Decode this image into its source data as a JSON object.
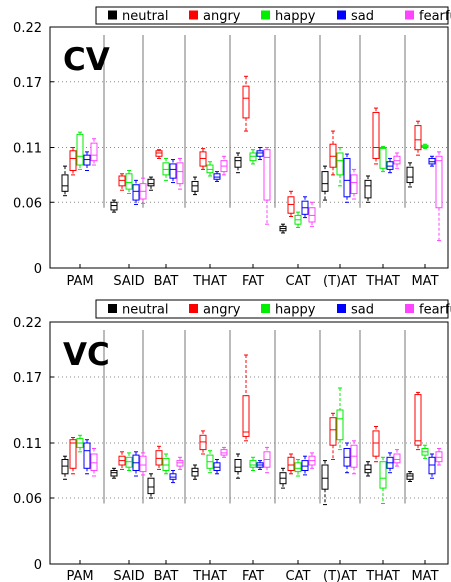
{
  "legend": [
    {
      "label": "neutral",
      "color": "#000000"
    },
    {
      "label": "angry",
      "color": "#ff0000"
    },
    {
      "label": "happy",
      "color": "#00ee00"
    },
    {
      "label": "sad",
      "color": "#0000ff"
    },
    {
      "label": "fearful",
      "color": "#ff44ff"
    }
  ],
  "chart_data": [
    {
      "type": "box",
      "title": "CV",
      "ylim": [
        0,
        0.22
      ],
      "yticks": [
        "0",
        "0.06",
        "0.11",
        "0.17",
        "0.22"
      ],
      "ytick_values": [
        0,
        0.06,
        0.11,
        0.17,
        0.22
      ],
      "categories": [
        "PAM",
        "SAID",
        "BAT",
        "THAT",
        "FAT",
        "CAT",
        "(T)AT",
        "THAT",
        "MAT"
      ],
      "grid": true,
      "legend_position": "top",
      "series": [
        {
          "name": "neutral",
          "boxes": [
            {
              "q1": 0.07,
              "q3": 0.085,
              "med": 0.075,
              "lo": 0.066,
              "hi": 0.093
            },
            {
              "q1": 0.053,
              "q3": 0.06,
              "med": 0.057,
              "lo": 0.051,
              "hi": 0.062
            },
            {
              "q1": 0.075,
              "q3": 0.081,
              "med": 0.077,
              "lo": 0.071,
              "hi": 0.083
            },
            {
              "q1": 0.07,
              "q3": 0.079,
              "med": 0.075,
              "lo": 0.067,
              "hi": 0.083
            },
            {
              "q1": 0.092,
              "q3": 0.101,
              "med": 0.098,
              "lo": 0.087,
              "hi": 0.105
            },
            {
              "q1": 0.034,
              "q3": 0.038,
              "med": 0.036,
              "lo": 0.032,
              "hi": 0.04
            },
            {
              "q1": 0.07,
              "q3": 0.088,
              "med": 0.077,
              "lo": 0.062,
              "hi": 0.093
            },
            {
              "q1": 0.064,
              "q3": 0.08,
              "med": 0.075,
              "lo": 0.06,
              "hi": 0.084
            },
            {
              "q1": 0.078,
              "q3": 0.092,
              "med": 0.083,
              "lo": 0.074,
              "hi": 0.096
            }
          ]
        },
        {
          "name": "angry",
          "boxes": [
            {
              "q1": 0.089,
              "q3": 0.107,
              "med": 0.1,
              "lo": 0.085,
              "hi": 0.11
            },
            {
              "q1": 0.075,
              "q3": 0.084,
              "med": 0.08,
              "lo": 0.071,
              "hi": 0.086
            },
            {
              "q1": 0.102,
              "q3": 0.107,
              "med": 0.105,
              "lo": 0.1,
              "hi": 0.108
            },
            {
              "q1": 0.093,
              "q3": 0.106,
              "med": 0.1,
              "lo": 0.09,
              "hi": 0.109
            },
            {
              "q1": 0.137,
              "q3": 0.166,
              "med": 0.155,
              "lo": 0.125,
              "hi": 0.175
            },
            {
              "q1": 0.05,
              "q3": 0.065,
              "med": 0.058,
              "lo": 0.047,
              "hi": 0.07
            },
            {
              "q1": 0.092,
              "q3": 0.113,
              "med": 0.102,
              "lo": 0.085,
              "hi": 0.125
            },
            {
              "q1": 0.1,
              "q3": 0.142,
              "med": 0.11,
              "lo": 0.095,
              "hi": 0.146
            },
            {
              "q1": 0.108,
              "q3": 0.13,
              "med": 0.117,
              "lo": 0.103,
              "hi": 0.134
            }
          ]
        },
        {
          "name": "happy",
          "boxes": [
            {
              "q1": 0.094,
              "q3": 0.122,
              "med": 0.102,
              "lo": 0.09,
              "hi": 0.124
            },
            {
              "q1": 0.072,
              "q3": 0.086,
              "med": 0.078,
              "lo": 0.068,
              "hi": 0.089
            },
            {
              "q1": 0.085,
              "q3": 0.096,
              "med": 0.09,
              "lo": 0.08,
              "hi": 0.1
            },
            {
              "q1": 0.087,
              "q3": 0.094,
              "med": 0.09,
              "lo": 0.084,
              "hi": 0.097
            },
            {
              "q1": 0.098,
              "q3": 0.105,
              "med": 0.102,
              "lo": 0.095,
              "hi": 0.108
            },
            {
              "q1": 0.04,
              "q3": 0.048,
              "med": 0.044,
              "lo": 0.037,
              "hi": 0.051
            },
            {
              "q1": 0.085,
              "q3": 0.105,
              "med": 0.098,
              "lo": 0.075,
              "hi": 0.11
            },
            {
              "q1": 0.091,
              "q3": 0.11,
              "med": 0.109,
              "lo": 0.088,
              "hi": 0.111
            },
            {
              "q1": 0.11,
              "q3": 0.112,
              "med": 0.111,
              "lo": 0.109,
              "hi": 0.113
            }
          ]
        },
        {
          "name": "sad",
          "boxes": [
            {
              "q1": 0.094,
              "q3": 0.103,
              "med": 0.099,
              "lo": 0.089,
              "hi": 0.106
            },
            {
              "q1": 0.062,
              "q3": 0.076,
              "med": 0.07,
              "lo": 0.058,
              "hi": 0.08
            },
            {
              "q1": 0.082,
              "q3": 0.095,
              "med": 0.09,
              "lo": 0.078,
              "hi": 0.099
            },
            {
              "q1": 0.081,
              "q3": 0.086,
              "med": 0.083,
              "lo": 0.079,
              "hi": 0.088
            },
            {
              "q1": 0.102,
              "q3": 0.107,
              "med": 0.105,
              "lo": 0.099,
              "hi": 0.11
            },
            {
              "q1": 0.049,
              "q3": 0.061,
              "med": 0.055,
              "lo": 0.046,
              "hi": 0.065
            },
            {
              "q1": 0.065,
              "q3": 0.1,
              "med": 0.08,
              "lo": 0.06,
              "hi": 0.104
            },
            {
              "q1": 0.09,
              "q3": 0.097,
              "med": 0.093,
              "lo": 0.087,
              "hi": 0.1
            },
            {
              "q1": 0.095,
              "q3": 0.1,
              "med": 0.097,
              "lo": 0.093,
              "hi": 0.102
            }
          ]
        },
        {
          "name": "fearful",
          "boxes": [
            {
              "q1": 0.098,
              "q3": 0.114,
              "med": 0.103,
              "lo": 0.094,
              "hi": 0.118
            },
            {
              "q1": 0.063,
              "q3": 0.077,
              "med": 0.07,
              "lo": 0.059,
              "hi": 0.082
            },
            {
              "q1": 0.077,
              "q3": 0.096,
              "med": 0.088,
              "lo": 0.072,
              "hi": 0.1
            },
            {
              "q1": 0.088,
              "q3": 0.098,
              "med": 0.093,
              "lo": 0.085,
              "hi": 0.102
            },
            {
              "q1": 0.062,
              "q3": 0.108,
              "med": 0.101,
              "lo": 0.04,
              "hi": 0.11
            },
            {
              "q1": 0.042,
              "q3": 0.055,
              "med": 0.048,
              "lo": 0.038,
              "hi": 0.06
            },
            {
              "q1": 0.068,
              "q3": 0.085,
              "med": 0.078,
              "lo": 0.063,
              "hi": 0.09
            },
            {
              "q1": 0.095,
              "q3": 0.102,
              "med": 0.098,
              "lo": 0.091,
              "hi": 0.105
            },
            {
              "q1": 0.055,
              "q3": 0.102,
              "med": 0.098,
              "lo": 0.025,
              "hi": 0.106
            }
          ]
        }
      ]
    },
    {
      "type": "box",
      "title": "VC",
      "ylim": [
        0,
        0.22
      ],
      "yticks": [
        "0",
        "0.06",
        "0.11",
        "0.17",
        "0.22"
      ],
      "ytick_values": [
        0,
        0.06,
        0.11,
        0.17,
        0.22
      ],
      "categories": [
        "PAM",
        "SAID",
        "BAT",
        "THAT",
        "FAT",
        "CAT",
        "(T)AT",
        "THAT",
        "MAT"
      ],
      "grid": true,
      "legend_position": "top",
      "series": [
        {
          "name": "neutral",
          "boxes": [
            {
              "q1": 0.082,
              "q3": 0.095,
              "med": 0.089,
              "lo": 0.077,
              "hi": 0.098
            },
            {
              "q1": 0.08,
              "q3": 0.085,
              "med": 0.083,
              "lo": 0.078,
              "hi": 0.087
            },
            {
              "q1": 0.064,
              "q3": 0.078,
              "med": 0.07,
              "lo": 0.06,
              "hi": 0.082
            },
            {
              "q1": 0.08,
              "q3": 0.087,
              "med": 0.084,
              "lo": 0.077,
              "hi": 0.09
            },
            {
              "q1": 0.084,
              "q3": 0.095,
              "med": 0.088,
              "lo": 0.078,
              "hi": 0.1
            },
            {
              "q1": 0.073,
              "q3": 0.083,
              "med": 0.078,
              "lo": 0.069,
              "hi": 0.087
            },
            {
              "q1": 0.068,
              "q3": 0.09,
              "med": 0.078,
              "lo": 0.054,
              "hi": 0.094
            },
            {
              "q1": 0.083,
              "q3": 0.09,
              "med": 0.086,
              "lo": 0.08,
              "hi": 0.093
            },
            {
              "q1": 0.077,
              "q3": 0.082,
              "med": 0.08,
              "lo": 0.075,
              "hi": 0.084
            }
          ]
        },
        {
          "name": "angry",
          "boxes": [
            {
              "q1": 0.087,
              "q3": 0.113,
              "med": 0.11,
              "lo": 0.082,
              "hi": 0.115
            },
            {
              "q1": 0.09,
              "q3": 0.098,
              "med": 0.094,
              "lo": 0.086,
              "hi": 0.102
            },
            {
              "q1": 0.09,
              "q3": 0.103,
              "med": 0.096,
              "lo": 0.086,
              "hi": 0.107
            },
            {
              "q1": 0.104,
              "q3": 0.117,
              "med": 0.111,
              "lo": 0.1,
              "hi": 0.121
            },
            {
              "q1": 0.116,
              "q3": 0.153,
              "med": 0.12,
              "lo": 0.112,
              "hi": 0.19
            },
            {
              "q1": 0.085,
              "q3": 0.097,
              "med": 0.09,
              "lo": 0.082,
              "hi": 0.1
            },
            {
              "q1": 0.108,
              "q3": 0.133,
              "med": 0.122,
              "lo": 0.095,
              "hi": 0.137
            },
            {
              "q1": 0.098,
              "q3": 0.121,
              "med": 0.11,
              "lo": 0.093,
              "hi": 0.125
            },
            {
              "q1": 0.108,
              "q3": 0.154,
              "med": 0.112,
              "lo": 0.104,
              "hi": 0.156
            }
          ]
        },
        {
          "name": "happy",
          "boxes": [
            {
              "q1": 0.106,
              "q3": 0.114,
              "med": 0.11,
              "lo": 0.102,
              "hi": 0.117
            },
            {
              "q1": 0.088,
              "q3": 0.097,
              "med": 0.093,
              "lo": 0.085,
              "hi": 0.101
            },
            {
              "q1": 0.085,
              "q3": 0.096,
              "med": 0.09,
              "lo": 0.082,
              "hi": 0.1
            },
            {
              "q1": 0.087,
              "q3": 0.099,
              "med": 0.093,
              "lo": 0.083,
              "hi": 0.103
            },
            {
              "q1": 0.088,
              "q3": 0.094,
              "med": 0.09,
              "lo": 0.085,
              "hi": 0.097
            },
            {
              "q1": 0.084,
              "q3": 0.092,
              "med": 0.087,
              "lo": 0.08,
              "hi": 0.095
            },
            {
              "q1": 0.113,
              "q3": 0.14,
              "med": 0.132,
              "lo": 0.104,
              "hi": 0.16
            },
            {
              "q1": 0.069,
              "q3": 0.093,
              "med": 0.078,
              "lo": 0.055,
              "hi": 0.097
            },
            {
              "q1": 0.099,
              "q3": 0.105,
              "med": 0.102,
              "lo": 0.096,
              "hi": 0.108
            }
          ]
        },
        {
          "name": "sad",
          "boxes": [
            {
              "q1": 0.087,
              "q3": 0.11,
              "med": 0.103,
              "lo": 0.082,
              "hi": 0.113
            },
            {
              "q1": 0.085,
              "q3": 0.099,
              "med": 0.092,
              "lo": 0.08,
              "hi": 0.102
            },
            {
              "q1": 0.077,
              "q3": 0.082,
              "med": 0.079,
              "lo": 0.074,
              "hi": 0.085
            },
            {
              "q1": 0.085,
              "q3": 0.092,
              "med": 0.088,
              "lo": 0.082,
              "hi": 0.095
            },
            {
              "q1": 0.088,
              "q3": 0.092,
              "med": 0.09,
              "lo": 0.086,
              "hi": 0.094
            },
            {
              "q1": 0.085,
              "q3": 0.094,
              "med": 0.089,
              "lo": 0.081,
              "hi": 0.098
            },
            {
              "q1": 0.089,
              "q3": 0.105,
              "med": 0.097,
              "lo": 0.083,
              "hi": 0.11
            },
            {
              "q1": 0.087,
              "q3": 0.097,
              "med": 0.092,
              "lo": 0.083,
              "hi": 0.101
            },
            {
              "q1": 0.082,
              "q3": 0.097,
              "med": 0.09,
              "lo": 0.078,
              "hi": 0.1
            }
          ]
        },
        {
          "name": "fearful",
          "boxes": [
            {
              "q1": 0.085,
              "q3": 0.1,
              "med": 0.092,
              "lo": 0.08,
              "hi": 0.105
            },
            {
              "q1": 0.084,
              "q3": 0.098,
              "med": 0.09,
              "lo": 0.081,
              "hi": 0.101
            },
            {
              "q1": 0.089,
              "q3": 0.094,
              "med": 0.092,
              "lo": 0.086,
              "hi": 0.097
            },
            {
              "q1": 0.099,
              "q3": 0.104,
              "med": 0.101,
              "lo": 0.097,
              "hi": 0.106
            },
            {
              "q1": 0.088,
              "q3": 0.102,
              "med": 0.095,
              "lo": 0.083,
              "hi": 0.106
            },
            {
              "q1": 0.09,
              "q3": 0.098,
              "med": 0.094,
              "lo": 0.087,
              "hi": 0.101
            },
            {
              "q1": 0.088,
              "q3": 0.108,
              "med": 0.098,
              "lo": 0.082,
              "hi": 0.112
            },
            {
              "q1": 0.092,
              "q3": 0.1,
              "med": 0.095,
              "lo": 0.089,
              "hi": 0.104
            },
            {
              "q1": 0.093,
              "q3": 0.102,
              "med": 0.097,
              "lo": 0.09,
              "hi": 0.105
            }
          ]
        }
      ]
    }
  ]
}
